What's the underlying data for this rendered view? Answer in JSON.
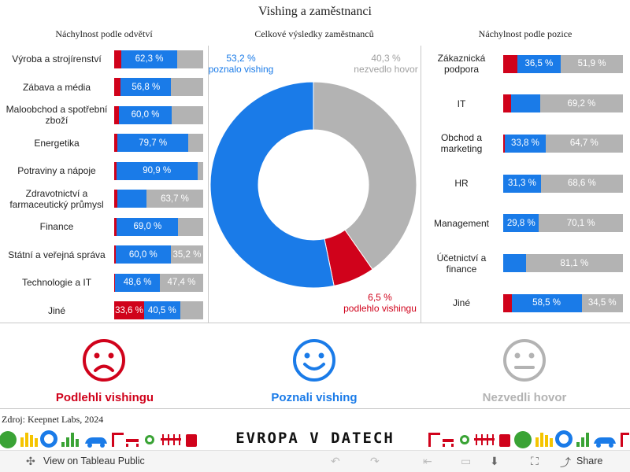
{
  "title": "Vishing a zaměstnanci",
  "colors": {
    "fell": "#d0021b",
    "recognized": "#1a7be8",
    "no_call": "#b3b3b3"
  },
  "chart_data": [
    {
      "type": "bar",
      "orientation": "horizontal",
      "stacked": true,
      "normalized": true,
      "title": "Náchylnost podle odvětví",
      "categories": [
        "Výroba a strojírenství",
        "Zábava a média",
        "Maloobchod a spotřební zboží",
        "Energetika",
        "Potraviny a nápoje",
        "Zdravotnictví a farmaceutický průmysl",
        "Finance",
        "Státní a veřejná správa",
        "Technologie a IT",
        "Jiné"
      ],
      "series": [
        {
          "name": "Podlehli vishingu",
          "values": [
            8.3,
            7.3,
            5.0,
            3.7,
            2.5,
            3.4,
            3.0,
            1.5,
            1.2,
            33.6
          ],
          "labels": [
            "",
            "",
            "",
            "",
            "",
            "",
            "",
            "",
            "",
            "33,6 %"
          ]
        },
        {
          "name": "Poznali vishing",
          "values": [
            62.3,
            56.8,
            60.0,
            79.7,
            90.9,
            32.9,
            69.0,
            60.0,
            48.6,
            40.5
          ],
          "labels": [
            "62,3 %",
            "56,8 %",
            "60,0 %",
            "79,7 %",
            "90,9 %",
            "",
            "69,0 %",
            "60,0 %",
            "48,6 %",
            "40,5 %"
          ]
        },
        {
          "name": "Nezvedli hovor",
          "values": [
            29.4,
            35.9,
            35.0,
            16.6,
            6.6,
            63.7,
            28.0,
            35.2,
            47.4,
            25.9
          ],
          "labels": [
            "",
            "",
            "",
            "",
            "",
            "63,7 %",
            "",
            "35,2 %",
            "47,4 %",
            ""
          ]
        }
      ]
    },
    {
      "type": "pie",
      "donut": true,
      "title": "Celkové výsledky zaměstnanců",
      "categories": [
        "poznalo vishing",
        "nezvedlo hovor",
        "podlehlo vishingu"
      ],
      "values": [
        53.2,
        40.3,
        6.5
      ],
      "labels": [
        "53,2 %",
        "40,3 %",
        "6,5 %"
      ]
    },
    {
      "type": "bar",
      "orientation": "horizontal",
      "stacked": true,
      "normalized": true,
      "title": "Náchylnost podle pozice",
      "categories": [
        "Zákaznická podpora",
        "IT",
        "Obchod a marketing",
        "HR",
        "Management",
        "Účetnictví a finance",
        "Jiné"
      ],
      "series": [
        {
          "name": "Podlehli vishingu",
          "values": [
            11.6,
            6.5,
            1.5,
            0.1,
            0.1,
            0.1,
            7.0
          ],
          "labels": [
            "",
            "",
            "",
            "",
            "",
            "",
            ""
          ]
        },
        {
          "name": "Poznali vishing",
          "values": [
            36.5,
            24.3,
            33.8,
            31.3,
            29.8,
            18.8,
            58.5
          ],
          "labels": [
            "36,5 %",
            "",
            "33,8 %",
            "31,3 %",
            "29,8 %",
            "",
            "58,5 %"
          ]
        },
        {
          "name": "Nezvedli hovor",
          "values": [
            51.9,
            69.2,
            64.7,
            68.6,
            70.1,
            81.1,
            34.5
          ],
          "labels": [
            "51,9 %",
            "69,2 %",
            "64,7 %",
            "68,6 %",
            "70,1 %",
            "81,1 %",
            "34,5 %"
          ]
        }
      ]
    }
  ],
  "legend": {
    "fell": "Podlehli vishingu",
    "recognized": "Poznali vishing",
    "no_call": "Nezvedli hovor"
  },
  "source": "Zdroj: Keepnet Labs, 2024",
  "logo": "EVROPA V DATECH",
  "toolbar": {
    "view_label": "View on Tableau Public",
    "share_label": "Share"
  },
  "icons": {
    "tableau": "tableau-icon",
    "undo": "undo-icon",
    "redo": "redo-icon",
    "revert": "revert-icon",
    "download": "download-icon",
    "fullscreen": "fullscreen-icon",
    "share": "share-icon"
  }
}
